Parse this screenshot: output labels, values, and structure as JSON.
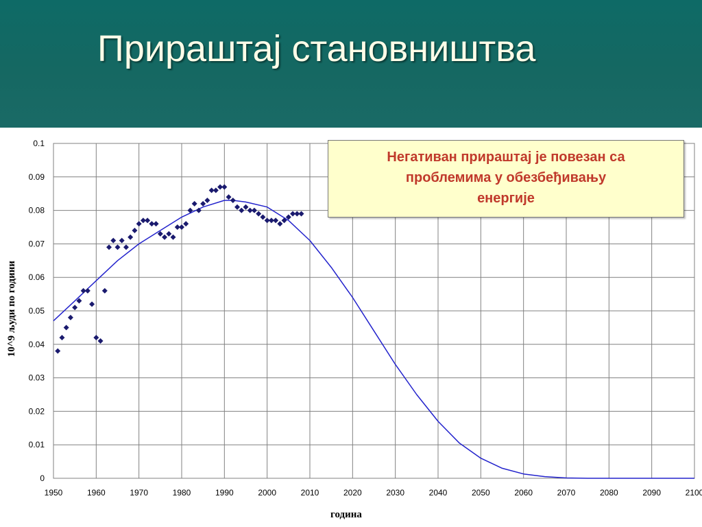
{
  "slide": {
    "title": "Прираштај становништва"
  },
  "callout": {
    "lines": [
      "Негативан прираштај је повезан са",
      "проблемима у обезбеђивању",
      "енергије"
    ]
  },
  "colors": {
    "header_background": "#156862",
    "title_text": "#fffde8",
    "marker": "#1a1a6e",
    "curve": "#2222cc",
    "callout_text": "#c0392b",
    "callout_background": "#ffffcc"
  },
  "chart_data": {
    "type": "scatter",
    "title": "",
    "xlabel": "година",
    "ylabel": "10^9  људи по години",
    "xlim": [
      1950,
      2100
    ],
    "ylim": [
      0,
      0.1
    ],
    "x_ticks": [
      1950,
      1960,
      1970,
      1980,
      1990,
      2000,
      2010,
      2020,
      2030,
      2040,
      2050,
      2060,
      2070,
      2080,
      2090,
      2100
    ],
    "x_tick_labels": [
      "1950",
      "1960",
      "1970",
      "1980",
      "1990",
      "2000",
      "2010",
      "2020",
      "2030",
      "2040",
      "2050",
      "2060",
      "2070",
      "2080",
      "2090",
      "2100"
    ],
    "y_ticks": [
      0,
      0.01,
      0.02,
      0.03,
      0.04,
      0.05,
      0.06,
      0.07,
      0.08,
      0.09,
      0.1
    ],
    "y_tick_labels": [
      "0",
      "0.01",
      "0.02",
      "0.03",
      "0.04",
      "0.05",
      "0.06",
      "0.07",
      "0.08",
      "0.09",
      "0.1"
    ],
    "grid": true,
    "legend": "none",
    "series": [
      {
        "kind": "points",
        "marker": "diamond",
        "x": [
          1951,
          1952,
          1953,
          1954,
          1955,
          1956,
          1957,
          1958,
          1959,
          1960,
          1961,
          1962,
          1963,
          1964,
          1965,
          1966,
          1967,
          1968,
          1969,
          1970,
          1971,
          1972,
          1973,
          1974,
          1975,
          1976,
          1977,
          1978,
          1979,
          1980,
          1981,
          1982,
          1983,
          1984,
          1985,
          1986,
          1987,
          1988,
          1989,
          1990,
          1991,
          1992,
          1993,
          1994,
          1995,
          1996,
          1997,
          1998,
          1999,
          2000,
          2001,
          2002,
          2003,
          2004,
          2005,
          2006,
          2007,
          2008
        ],
        "y": [
          0.038,
          0.042,
          0.045,
          0.048,
          0.051,
          0.053,
          0.056,
          0.056,
          0.052,
          0.042,
          0.041,
          0.056,
          0.069,
          0.071,
          0.069,
          0.071,
          0.069,
          0.072,
          0.074,
          0.076,
          0.077,
          0.077,
          0.076,
          0.076,
          0.073,
          0.072,
          0.073,
          0.072,
          0.075,
          0.075,
          0.076,
          0.08,
          0.082,
          0.08,
          0.082,
          0.083,
          0.086,
          0.086,
          0.087,
          0.087,
          0.084,
          0.083,
          0.081,
          0.08,
          0.081,
          0.08,
          0.08,
          0.079,
          0.078,
          0.077,
          0.077,
          0.077,
          0.076,
          0.077,
          0.078,
          0.079,
          0.079,
          0.079
        ]
      },
      {
        "kind": "curve",
        "x": [
          1950,
          1955,
          1960,
          1965,
          1970,
          1975,
          1980,
          1985,
          1990,
          1992,
          1995,
          2000,
          2005,
          2010,
          2015,
          2020,
          2025,
          2030,
          2035,
          2040,
          2045,
          2050,
          2055,
          2060,
          2065,
          2070,
          2075,
          2080,
          2090,
          2100
        ],
        "y": [
          0.047,
          0.053,
          0.059,
          0.065,
          0.07,
          0.074,
          0.078,
          0.081,
          0.083,
          0.083,
          0.0825,
          0.081,
          0.077,
          0.071,
          0.063,
          0.054,
          0.044,
          0.034,
          0.025,
          0.017,
          0.0105,
          0.006,
          0.003,
          0.0013,
          0.0005,
          0.0001,
          0.0,
          0.0,
          0.0,
          0.0
        ]
      }
    ]
  }
}
